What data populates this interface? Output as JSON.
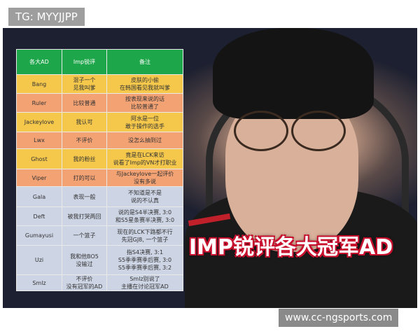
{
  "watermark": "TG: MYYJJPP",
  "site": "www.cc-ngsports.com",
  "title": "IMP锐评各大冠军AD",
  "table": {
    "headers": [
      "各大AD",
      "Imp锐评",
      "备注"
    ],
    "rows": [
      {
        "name": "Bang",
        "comment": "混子一个\n见我叫爹",
        "note": "皮肤的小偷\n在韩国看见我就叫爹",
        "color": "y"
      },
      {
        "name": "Ruler",
        "comment": "比较普通",
        "note": "按表现来说的话\n比较普通了",
        "color": "o"
      },
      {
        "name": "Jackeylove",
        "comment": "我认可",
        "note": "阿水是一位\n敢于操作的选手",
        "color": "y"
      },
      {
        "name": "Lwx",
        "comment": "不评价",
        "note": "没怎么抽到过",
        "color": "o"
      },
      {
        "name": "Ghost",
        "comment": "我的粉丝",
        "note": "竟是在LCK来访\n说看了Imp的VN才打职业",
        "color": "y"
      },
      {
        "name": "Viper",
        "comment": "打的可以",
        "note": "与Jackeylove一起评价\n没有多说",
        "color": "o"
      },
      {
        "name": "Gala",
        "comment": "表现一般",
        "note": "不知道是不是\n说的不认真",
        "color": "b"
      },
      {
        "name": "Deft",
        "comment": "被我打哭两回",
        "note": "说的是S4半决赛, 3:0\n和S5星条赛半决赛, 3:0",
        "color": "b"
      },
      {
        "name": "Gumayusi",
        "comment": "一个篮子",
        "note": "现在的LCK下路都不行\n先冠GJ8, 一个篮子",
        "color": "b"
      },
      {
        "name": "Uzi",
        "comment": "我和他BO5\n没输过",
        "note": "指S4决赛, 3:1\nS5季季赛季后赛, 3:0\nS5季季赛季后赛, 3:2",
        "color": "b"
      },
      {
        "name": "Smlz",
        "comment": "不评价\n没有冠军的AD",
        "note": "Smlz别说了\n主播在讨论冠军AD",
        "color": "b"
      }
    ]
  }
}
